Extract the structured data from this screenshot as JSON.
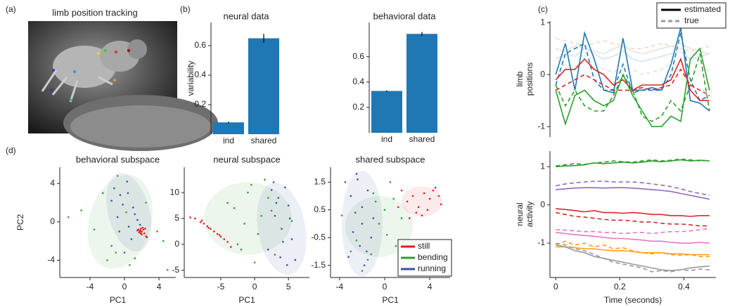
{
  "panel_labels": [
    "(a)",
    "(b)",
    "(c)",
    "(d)"
  ],
  "image": {
    "title": "limb position tracking"
  },
  "chart_data": [
    {
      "type": "bar",
      "title": "neural data",
      "ylabel": "variability",
      "categories": [
        "ind",
        "shared"
      ],
      "values": [
        0.08,
        0.65
      ],
      "errors": [
        0.005,
        0.03
      ],
      "color": "#1f77b4",
      "ylim": [
        0,
        0.757
      ],
      "yticks": [
        0.2,
        0.4,
        0.6
      ]
    },
    {
      "type": "bar",
      "title": "behavioral data",
      "categories": [
        "ind",
        "shared"
      ],
      "values": [
        0.33,
        0.78
      ],
      "errors": [
        0.005,
        0.015
      ],
      "color": "#1f77b4",
      "ylim": [
        0,
        0.87
      ],
      "yticks": [
        0.2,
        0.4,
        0.6
      ]
    },
    {
      "type": "line",
      "ylabel": [
        "limb",
        "positions"
      ],
      "xlim": [
        -0.018,
        0.5
      ],
      "ylim": [
        -1.2,
        1.03
      ],
      "yticks": [
        -1,
        0,
        1
      ],
      "legend": [
        {
          "name": "estimated",
          "color": "#000000",
          "style": "solid"
        },
        {
          "name": "true",
          "color": "#999999",
          "style": "dashed"
        }
      ],
      "x": [
        0,
        0.03,
        0.06,
        0.09,
        0.12,
        0.15,
        0.18,
        0.21,
        0.24,
        0.27,
        0.3,
        0.33,
        0.36,
        0.39,
        0.42,
        0.45,
        0.48
      ],
      "series": [
        {
          "color": "#f6d7c3",
          "style": "dashed",
          "values": [
            0.7,
            0.65,
            0.6,
            0.55,
            0.6,
            0.65,
            0.6,
            0.55,
            0.5,
            0.5,
            0.55,
            0.6,
            0.55,
            0.5,
            0.45,
            0.5,
            0.55
          ]
        },
        {
          "color": "#d3e4f1",
          "style": "solid",
          "values": [
            0.3,
            0.4,
            0.35,
            0.5,
            0.4,
            0.3,
            0.35,
            0.45,
            0.3,
            0.25,
            0.3,
            0.35,
            0.4,
            0.45,
            0.3,
            0.35,
            0.4
          ]
        },
        {
          "color": "#dbe9dc",
          "style": "dashed",
          "values": [
            0.1,
            0.2,
            0.15,
            0.25,
            0.2,
            0.1,
            0.05,
            0.15,
            0.1,
            0.0,
            0.05,
            0.1,
            0.2,
            0.15,
            0.1,
            0.05,
            0.1
          ]
        },
        {
          "color": "#e3e3e3",
          "style": "solid",
          "values": [
            0.5,
            0.45,
            0.55,
            0.5,
            0.45,
            0.4,
            0.5,
            0.55,
            0.45,
            0.4,
            0.45,
            0.5,
            0.55,
            0.6,
            0.5,
            0.45,
            0.4
          ]
        },
        {
          "color": "#1f77b4",
          "style": "solid",
          "values": [
            0,
            0.6,
            -0.3,
            0.8,
            0.3,
            -0.3,
            -0.35,
            0.7,
            -0.3,
            -0.3,
            -0.25,
            -0.3,
            0.2,
            0.9,
            -0.5,
            -0.55,
            -0.7
          ]
        },
        {
          "color": "#1f77b4",
          "style": "dashed",
          "values": [
            -0.2,
            0.4,
            0.5,
            0.6,
            -0.1,
            -0.3,
            -0.3,
            0.2,
            -0.35,
            -0.3,
            -0.3,
            -0.3,
            0,
            0.8,
            -0.1,
            -0.5,
            -0.4
          ]
        },
        {
          "color": "#d62728",
          "style": "solid",
          "values": [
            -0.1,
            0.1,
            0.1,
            0.3,
            0.1,
            0,
            -0.2,
            -0.1,
            -0.3,
            -0.2,
            -0.2,
            -0.2,
            -0.1,
            0.3,
            -0.3,
            -0.5,
            -0.5
          ]
        },
        {
          "color": "#d62728",
          "style": "dashed",
          "values": [
            -0.3,
            -0.2,
            -0.1,
            0,
            -0.1,
            -0.2,
            -0.3,
            -0.3,
            -0.3,
            -0.25,
            -0.3,
            -0.25,
            -0.2,
            0.1,
            -0.2,
            -0.3,
            -0.4
          ]
        },
        {
          "color": "#2ca02c",
          "style": "solid",
          "values": [
            -0.3,
            -0.95,
            -0.4,
            -0.3,
            -0.5,
            -0.6,
            -0.5,
            0,
            -0.4,
            -0.7,
            -1,
            -1,
            -0.8,
            -0.9,
            0.3,
            0.5,
            -0.3
          ]
        },
        {
          "color": "#2ca02c",
          "style": "dashed",
          "values": [
            -0.2,
            -0.6,
            -0.3,
            -0.6,
            -0.7,
            -0.7,
            -0.4,
            0,
            -0.3,
            -0.8,
            -0.9,
            -0.8,
            -0.5,
            -0.7,
            -0.2,
            0.4,
            -0.7
          ]
        }
      ]
    },
    {
      "type": "line",
      "ylabel": [
        "neural",
        "activity"
      ],
      "xlabel": "Time (seconds)",
      "xlim": [
        -0.018,
        0.5
      ],
      "ylim": [
        -1.9,
        1.41
      ],
      "yticks": [
        -1,
        0,
        1
      ],
      "xticks": [
        0,
        0.2,
        0.4
      ],
      "x": [
        0,
        0.03,
        0.06,
        0.09,
        0.12,
        0.15,
        0.18,
        0.21,
        0.24,
        0.27,
        0.3,
        0.33,
        0.36,
        0.39,
        0.42,
        0.45,
        0.48
      ],
      "series": [
        {
          "color": "#2ca02c",
          "style": "solid",
          "values": [
            1.0,
            1.02,
            1.03,
            1.05,
            1.1,
            1.08,
            1.1,
            1.12,
            1.1,
            1.12,
            1.15,
            1.13,
            1.15,
            1.18,
            1.15,
            1.17,
            1.15
          ]
        },
        {
          "color": "#2ca02c",
          "style": "dashed",
          "values": [
            1.02,
            1.05,
            1.08,
            1.06,
            1.1,
            1.12,
            1.15,
            1.13,
            1.12,
            1.15,
            1.18,
            1.15,
            1.17,
            1.2,
            1.18,
            1.15,
            1.17
          ]
        },
        {
          "color": "#9467bd",
          "style": "solid",
          "values": [
            0.4,
            0.42,
            0.44,
            0.45,
            0.45,
            0.44,
            0.45,
            0.45,
            0.44,
            0.42,
            0.4,
            0.38,
            0.35,
            0.3,
            0.25,
            0.2,
            0.15
          ]
        },
        {
          "color": "#9467bd",
          "style": "dashed",
          "values": [
            0.5,
            0.55,
            0.58,
            0.6,
            0.62,
            0.62,
            0.6,
            0.6,
            0.6,
            0.58,
            0.55,
            0.52,
            0.48,
            0.42,
            0.35,
            0.3,
            0.25
          ]
        },
        {
          "color": "#d62728",
          "style": "solid",
          "values": [
            -0.1,
            -0.12,
            -0.15,
            -0.18,
            -0.15,
            -0.2,
            -0.2,
            -0.22,
            -0.2,
            -0.22,
            -0.25,
            -0.25,
            -0.28,
            -0.28,
            -0.3,
            -0.28,
            -0.28
          ]
        },
        {
          "color": "#d62728",
          "style": "dashed",
          "values": [
            -0.2,
            -0.25,
            -0.3,
            -0.32,
            -0.35,
            -0.38,
            -0.4,
            -0.4,
            -0.42,
            -0.45,
            -0.45,
            -0.48,
            -0.5,
            -0.5,
            -0.52,
            -0.55,
            -0.55
          ]
        },
        {
          "color": "#e377c2",
          "style": "solid",
          "values": [
            -0.72,
            -0.75,
            -0.78,
            -0.8,
            -0.82,
            -0.85,
            -0.88,
            -0.88,
            -0.9,
            -0.92,
            -0.95,
            -0.95,
            -0.98,
            -1.0,
            -1.0,
            -0.98,
            -1.0
          ]
        },
        {
          "color": "#e377c2",
          "style": "dashed",
          "values": [
            -0.65,
            -0.66,
            -0.68,
            -0.7,
            -0.7,
            -0.72,
            -0.72,
            -0.75,
            -0.73,
            -0.72,
            -0.75,
            -0.72,
            -0.7,
            -0.7,
            -0.68,
            -0.65,
            -0.62
          ]
        },
        {
          "color": "#ff9f1c",
          "style": "solid",
          "values": [
            -1.1,
            -1.1,
            -1.12,
            -1.15,
            -1.15,
            -1.18,
            -1.2,
            -1.2,
            -1.22,
            -1.25,
            -1.25,
            -1.25,
            -1.28,
            -1.28,
            -1.3,
            -1.3,
            -1.3
          ]
        },
        {
          "color": "#ff9f1c",
          "style": "dashed",
          "values": [
            -1.05,
            -0.95,
            -1.05,
            -1.0,
            -1.1,
            -1.05,
            -1.15,
            -1.12,
            -1.2,
            -1.25,
            -1.28,
            -1.25,
            -1.3,
            -1.32,
            -1.3,
            -1.35,
            -1.35
          ]
        },
        {
          "color": "#999999",
          "style": "solid",
          "values": [
            -1.05,
            -1.1,
            -1.2,
            -1.25,
            -1.35,
            -1.4,
            -1.45,
            -1.5,
            -1.55,
            -1.6,
            -1.65,
            -1.7,
            -1.72,
            -1.7,
            -1.65,
            -1.62,
            -1.6
          ]
        },
        {
          "color": "#999999",
          "style": "dashed",
          "values": [
            -1.0,
            -1.05,
            -1.15,
            -1.2,
            -1.3,
            -1.4,
            -1.5,
            -1.55,
            -1.6,
            -1.65,
            -1.75,
            -1.72,
            -1.75,
            -1.7,
            -1.72,
            -1.68,
            -1.7
          ]
        }
      ]
    },
    {
      "type": "scatter",
      "title": "behavioral subspace",
      "xlabel": "PC1",
      "ylabel": "PC2",
      "xlim": [
        -7.5,
        5.95
      ],
      "ylim": [
        -5.8,
        5.7
      ],
      "xticks": [
        -4,
        0,
        4
      ],
      "yticks": [
        -4,
        0,
        4
      ],
      "series": [
        {
          "color": "#2ca02c",
          "x": [
            -6.5,
            -5.0,
            -3.5,
            -2.5,
            -1.5,
            -0.8,
            0.6,
            1.2,
            2.5,
            3.8,
            5.0,
            -2.0,
            0.2,
            -1.0,
            4.5
          ],
          "y": [
            0.5,
            1.2,
            -0.8,
            3.0,
            -2.5,
            4.8,
            -4.5,
            -3.8,
            2.0,
            -1.0,
            -5.0,
            -4.0,
            1.0,
            -3.2,
            -2.0
          ],
          "ellipse": {
            "cx": -0.5,
            "cy": 0,
            "rx": 3.6,
            "ry": 5.0,
            "angle": 15
          }
        },
        {
          "color": "#3b4ea0",
          "x": [
            -1.2,
            -0.5,
            0.3,
            1.0,
            -0.8,
            0.5,
            1.5,
            -0.2,
            0.8,
            -1.5,
            0.0,
            1.2,
            -0.6,
            0.4,
            1.8
          ],
          "y": [
            3.5,
            2.8,
            4.2,
            1.5,
            0.5,
            -0.5,
            0.2,
            1.8,
            -1.8,
            2.2,
            -3.2,
            0.8,
            -1.0,
            3.0,
            -0.3
          ],
          "ellipse": {
            "cx": 0.5,
            "cy": 1,
            "rx": 2.4,
            "ry": 4.2,
            "angle": -15
          }
        },
        {
          "color": "#e41a1c",
          "x": [
            1.6,
            1.8,
            2.0,
            2.1,
            1.7,
            1.9,
            2.3,
            2.5,
            1.5,
            2.2,
            2.0,
            1.8,
            2.4,
            2.6,
            1.9
          ],
          "y": [
            -0.8,
            -0.9,
            -1.0,
            -0.6,
            -1.1,
            -0.7,
            -1.2,
            -1.5,
            -0.9,
            -0.8,
            -1.3,
            -1.0,
            -0.7,
            -1.6,
            -1.2
          ]
        }
      ]
    },
    {
      "type": "scatter",
      "title": "neural subspace",
      "xlabel": "PC1",
      "xlim": [
        -10.4,
        8.1
      ],
      "ylim": [
        -6.4,
        14.9
      ],
      "xticks": [
        -5,
        0,
        5
      ],
      "yticks": [
        -5,
        0,
        5,
        10
      ],
      "series": [
        {
          "color": "#2ca02c",
          "x": [
            -3.0,
            -1.0,
            0.5,
            2.0,
            -2.0,
            1.0,
            -0.5,
            3.0,
            -1.5,
            0.0,
            2.5,
            -4.0,
            1.5,
            -2.5,
            5.5
          ],
          "y": [
            7.0,
            10.0,
            2.0,
            9.0,
            -1.0,
            5.5,
            11.5,
            -2.0,
            4.0,
            -3.5,
            6.5,
            8.0,
            12.5,
            0.0,
            4.5
          ],
          "ellipse": {
            "cx": -1,
            "cy": 5,
            "rx": 6.5,
            "ry": 7,
            "angle": 0
          }
        },
        {
          "color": "#3b4ea0",
          "x": [
            2.5,
            3.5,
            4.5,
            5.0,
            3.0,
            4.0,
            5.5,
            2.0,
            3.8,
            4.8,
            6.0,
            3.2,
            4.2,
            5.2,
            2.8
          ],
          "y": [
            10.5,
            9.0,
            11.0,
            7.5,
            5.5,
            3.0,
            1.0,
            -1.0,
            -2.5,
            -4.0,
            -3.0,
            8.0,
            0.5,
            5.0,
            12.0
          ],
          "ellipse": {
            "cx": 4,
            "cy": 3,
            "rx": 3.5,
            "ry": 9,
            "angle": -10
          }
        },
        {
          "color": "#e41a1c",
          "x": [
            -9.5,
            -8.8,
            -8.0,
            -7.5,
            -7.0,
            -6.5,
            -6.0,
            -5.5,
            -5.0,
            -4.5,
            -4.0,
            -3.5,
            -6.8,
            -7.8,
            -5.2
          ],
          "y": [
            5.2,
            5.0,
            4.3,
            4.0,
            3.5,
            3.0,
            2.5,
            2.0,
            1.5,
            1.0,
            0.5,
            -0.5,
            3.2,
            4.6,
            1.8
          ]
        }
      ]
    },
    {
      "type": "scatter",
      "title": "shared subspace",
      "xlabel": "PC1",
      "xlim": [
        -4.8,
        5.8
      ],
      "ylim": [
        -1.94,
        2.04
      ],
      "xticks": [
        -4,
        0,
        4
      ],
      "yticks": [
        -1.5,
        -0.5,
        0.5,
        1.5
      ],
      "legend_loc": "lower right",
      "series": [
        {
          "name": "still",
          "color": "#e41a1c",
          "x": [
            1.5,
            2.0,
            2.5,
            3.0,
            3.5,
            4.0,
            4.5,
            5.0,
            2.8,
            3.3,
            3.8,
            4.3,
            2.2,
            4.8,
            1.2
          ],
          "y": [
            1.2,
            0.8,
            1.0,
            0.6,
            1.1,
            0.9,
            1.3,
            0.7,
            0.4,
            0.3,
            0.5,
            1.2,
            0.2,
            1.0,
            0.6
          ],
          "ellipse": {
            "cx": 3.3,
            "cy": 0.8,
            "rx": 1.8,
            "ry": 0.55,
            "angle": 0
          }
        },
        {
          "name": "bending",
          "color": "#2ca02c",
          "x": [
            -3.8,
            -2.5,
            -1.0,
            0.0,
            1.0,
            -1.5,
            -0.5,
            0.5,
            -2.0,
            1.5,
            -3.0,
            -0.8,
            0.2,
            -1.2,
            0.8
          ],
          "y": [
            0.3,
            -0.6,
            1.1,
            0.5,
            -0.8,
            -1.3,
            0.0,
            1.5,
            -1.7,
            0.2,
            -1.0,
            0.8,
            -0.4,
            -1.1,
            0.9
          ],
          "ellipse": {
            "cx": -0.5,
            "cy": -0.1,
            "rx": 3,
            "ry": 1.1,
            "angle": 0
          }
        },
        {
          "name": "running",
          "color": "#3b4ea0",
          "x": [
            -3.5,
            -3.0,
            -2.5,
            -2.0,
            -1.5,
            -1.0,
            -2.8,
            -2.2,
            -1.8,
            -3.2,
            -1.2,
            -2.0,
            -2.6,
            -1.6,
            -2.4
          ],
          "y": [
            1.5,
            1.0,
            1.8,
            0.6,
            1.2,
            0.2,
            -0.3,
            -0.8,
            -1.5,
            -1.2,
            -0.5,
            0.0,
            0.4,
            -1.0,
            1.6
          ],
          "ellipse": {
            "cx": -2,
            "cy": 0,
            "rx": 1.8,
            "ry": 1.9,
            "angle": 0
          }
        }
      ]
    }
  ]
}
